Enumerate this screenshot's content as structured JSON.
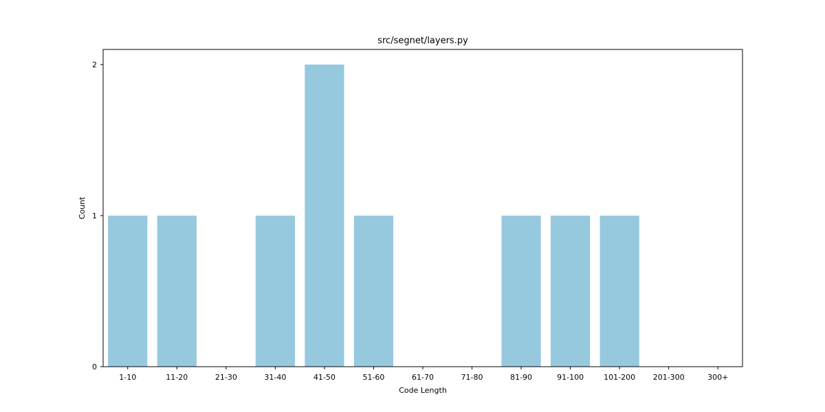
{
  "chart_data": {
    "type": "bar",
    "title": "src/segnet/layers.py",
    "xlabel": "Code Length",
    "ylabel": "Count",
    "categories": [
      "1-10",
      "11-20",
      "21-30",
      "31-40",
      "41-50",
      "51-60",
      "61-70",
      "71-80",
      "81-90",
      "91-100",
      "101-200",
      "201-300",
      "300+"
    ],
    "values": [
      1,
      1,
      0,
      1,
      2,
      1,
      0,
      0,
      1,
      1,
      1,
      0,
      0
    ],
    "ylim": [
      0,
      2.1
    ],
    "yticks": [
      0,
      1,
      2
    ],
    "bar_color": "#96c9de",
    "grid": false,
    "legend": "none"
  }
}
